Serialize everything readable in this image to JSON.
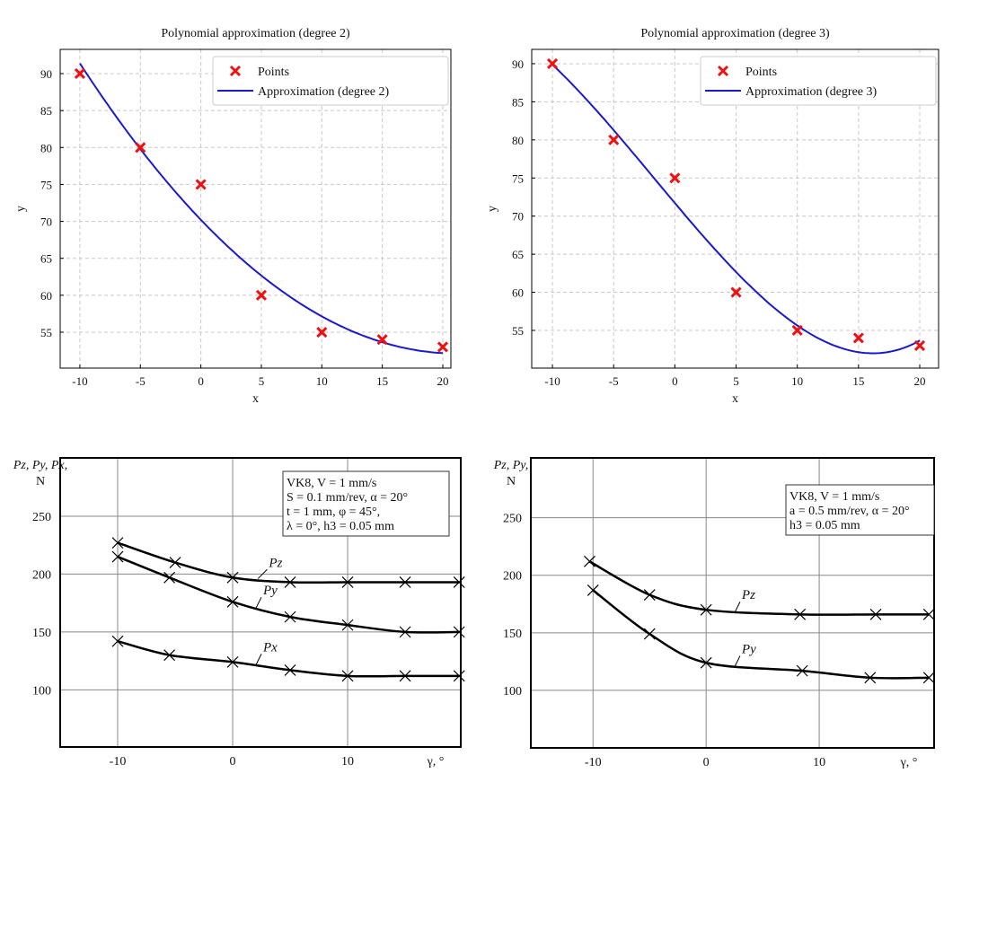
{
  "chart_data": [
    {
      "type": "scatter+line",
      "title": "Polynomial approximation (degree 2)",
      "xlabel": "x",
      "ylabel": "y",
      "xticks": [
        -10,
        -5,
        0,
        5,
        10,
        15,
        20
      ],
      "yticks": [
        55,
        60,
        65,
        70,
        75,
        80,
        85,
        90
      ],
      "grid": true,
      "legend_position": "top-right",
      "legend": [
        "Points",
        "Approximation (degree 2)"
      ],
      "degree": 2,
      "points": {
        "x": [
          -10,
          -5,
          0,
          5,
          10,
          15,
          20
        ],
        "y": [
          90,
          80,
          75,
          60,
          55,
          54,
          53
        ]
      },
      "colors": {
        "points": "#ee1111",
        "fit": "#1a1acc"
      }
    },
    {
      "type": "scatter+line",
      "title": "Polynomial approximation (degree 3)",
      "xlabel": "x",
      "ylabel": "y",
      "xticks": [
        -10,
        -5,
        0,
        5,
        10,
        15,
        20
      ],
      "yticks": [
        55,
        60,
        65,
        70,
        75,
        80,
        85,
        90
      ],
      "grid": true,
      "legend_position": "top-right",
      "legend": [
        "Points",
        "Approximation (degree 3)"
      ],
      "degree": 3,
      "points": {
        "x": [
          -10,
          -5,
          0,
          5,
          10,
          15,
          20
        ],
        "y": [
          90,
          80,
          75,
          60,
          55,
          54,
          53
        ]
      },
      "colors": {
        "points": "#ee1111",
        "fit": "#1a1acc"
      }
    },
    {
      "type": "line",
      "ylabel": [
        "Pz, Py, Px,",
        "N"
      ],
      "xlabel": "γ, °",
      "xticks": [
        -10,
        0,
        10
      ],
      "yticks": [
        100,
        150,
        200,
        250
      ],
      "grid": true,
      "annotation": [
        "VK8,  V = 1 mm/s",
        "S = 0.1 mm/rev, α = 20°",
        "t = 1 mm, φ = 45°,",
        "λ = 0°, h3 = 0.05 mm"
      ],
      "series": [
        {
          "name": "Pz",
          "x": [
            -10,
            -5,
            0,
            5,
            10,
            15,
            19.7
          ],
          "y": [
            227,
            210,
            197,
            193,
            193,
            193,
            193
          ]
        },
        {
          "name": "Py",
          "x": [
            -10,
            -5.5,
            0,
            5,
            10,
            15,
            19.7
          ],
          "y": [
            215,
            197,
            176,
            163,
            156,
            150,
            150
          ]
        },
        {
          "name": "Px",
          "x": [
            -10,
            -5.5,
            0,
            5,
            10,
            15,
            19.7
          ],
          "y": [
            142,
            130,
            124,
            117,
            112,
            112,
            112
          ]
        }
      ]
    },
    {
      "type": "line",
      "ylabel": [
        "Pz, Py,",
        "N"
      ],
      "xlabel": "γ, °",
      "xticks": [
        -10,
        0,
        10
      ],
      "yticks": [
        100,
        150,
        200,
        250
      ],
      "grid": true,
      "annotation": [
        "VK8,  V = 1 mm/s",
        "a = 0.5 mm/rev, α = 20°",
        "h3 = 0.05 mm"
      ],
      "series": [
        {
          "name": "Pz",
          "x": [
            -10.3,
            -5,
            0,
            8.3,
            15,
            19.7
          ],
          "y": [
            212,
            183,
            170,
            166,
            166,
            166
          ]
        },
        {
          "name": "Py",
          "x": [
            -10,
            -5,
            0,
            8.5,
            14.5,
            19.7
          ],
          "y": [
            187,
            149,
            124,
            117,
            111,
            111
          ]
        }
      ]
    }
  ]
}
